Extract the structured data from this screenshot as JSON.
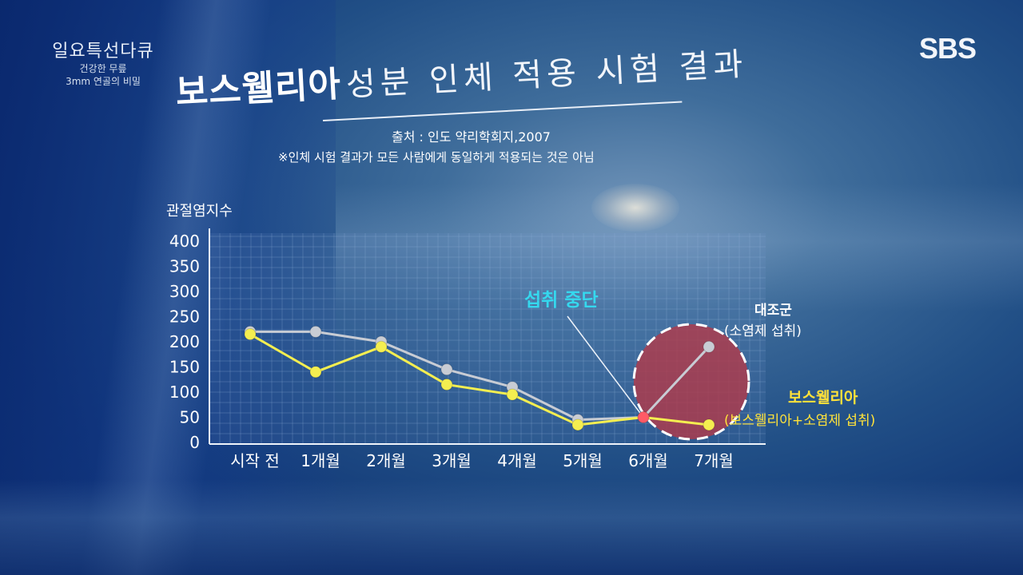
{
  "program": {
    "title": "일요특선다큐",
    "subtitle_line1": "건강한 무릎",
    "subtitle_line2": "3mm 연골의 비밀"
  },
  "broadcaster": {
    "logo_text": "SBS"
  },
  "headline": {
    "bold": "보스웰리아",
    "rest": "성분 인체 적용 시험 결과"
  },
  "source_text": "출처 : 인도 약리학회지,2007",
  "disclaimer_text": "※인체 시험 결과가 모든 사람에게 동일하게 적용되는 것은 아님",
  "annotations": {
    "stop_intake": "섭취 중단",
    "control_title": "대조군",
    "control_sub": "(소염제 섭취)",
    "boswellia_title": "보스웰리아",
    "boswellia_sub": "(보스웰리아+소염제 섭취)"
  },
  "colors": {
    "control_line": "#c8ccd4",
    "boswellia_line": "#f4ee50",
    "highlight_circle": "#b03a4a",
    "stop_label": "#35d8ee",
    "grid": "#8fb0d8"
  },
  "chart_data": {
    "type": "line",
    "ylabel": "관절염지수",
    "xlabel": "",
    "categories": [
      "시작 전",
      "1개월",
      "2개월",
      "3개월",
      "4개월",
      "5개월",
      "6개월",
      "7개월"
    ],
    "ylim": [
      0,
      400
    ],
    "yticks": [
      0,
      50,
      100,
      150,
      200,
      250,
      300,
      350,
      400
    ],
    "grid": true,
    "series": [
      {
        "name": "대조군",
        "values": [
          220,
          220,
          200,
          145,
          110,
          45,
          50,
          190
        ]
      },
      {
        "name": "보스웰리아",
        "values": [
          215,
          140,
          190,
          115,
          95,
          35,
          50,
          35
        ]
      }
    ],
    "highlight_category": "6개월"
  }
}
